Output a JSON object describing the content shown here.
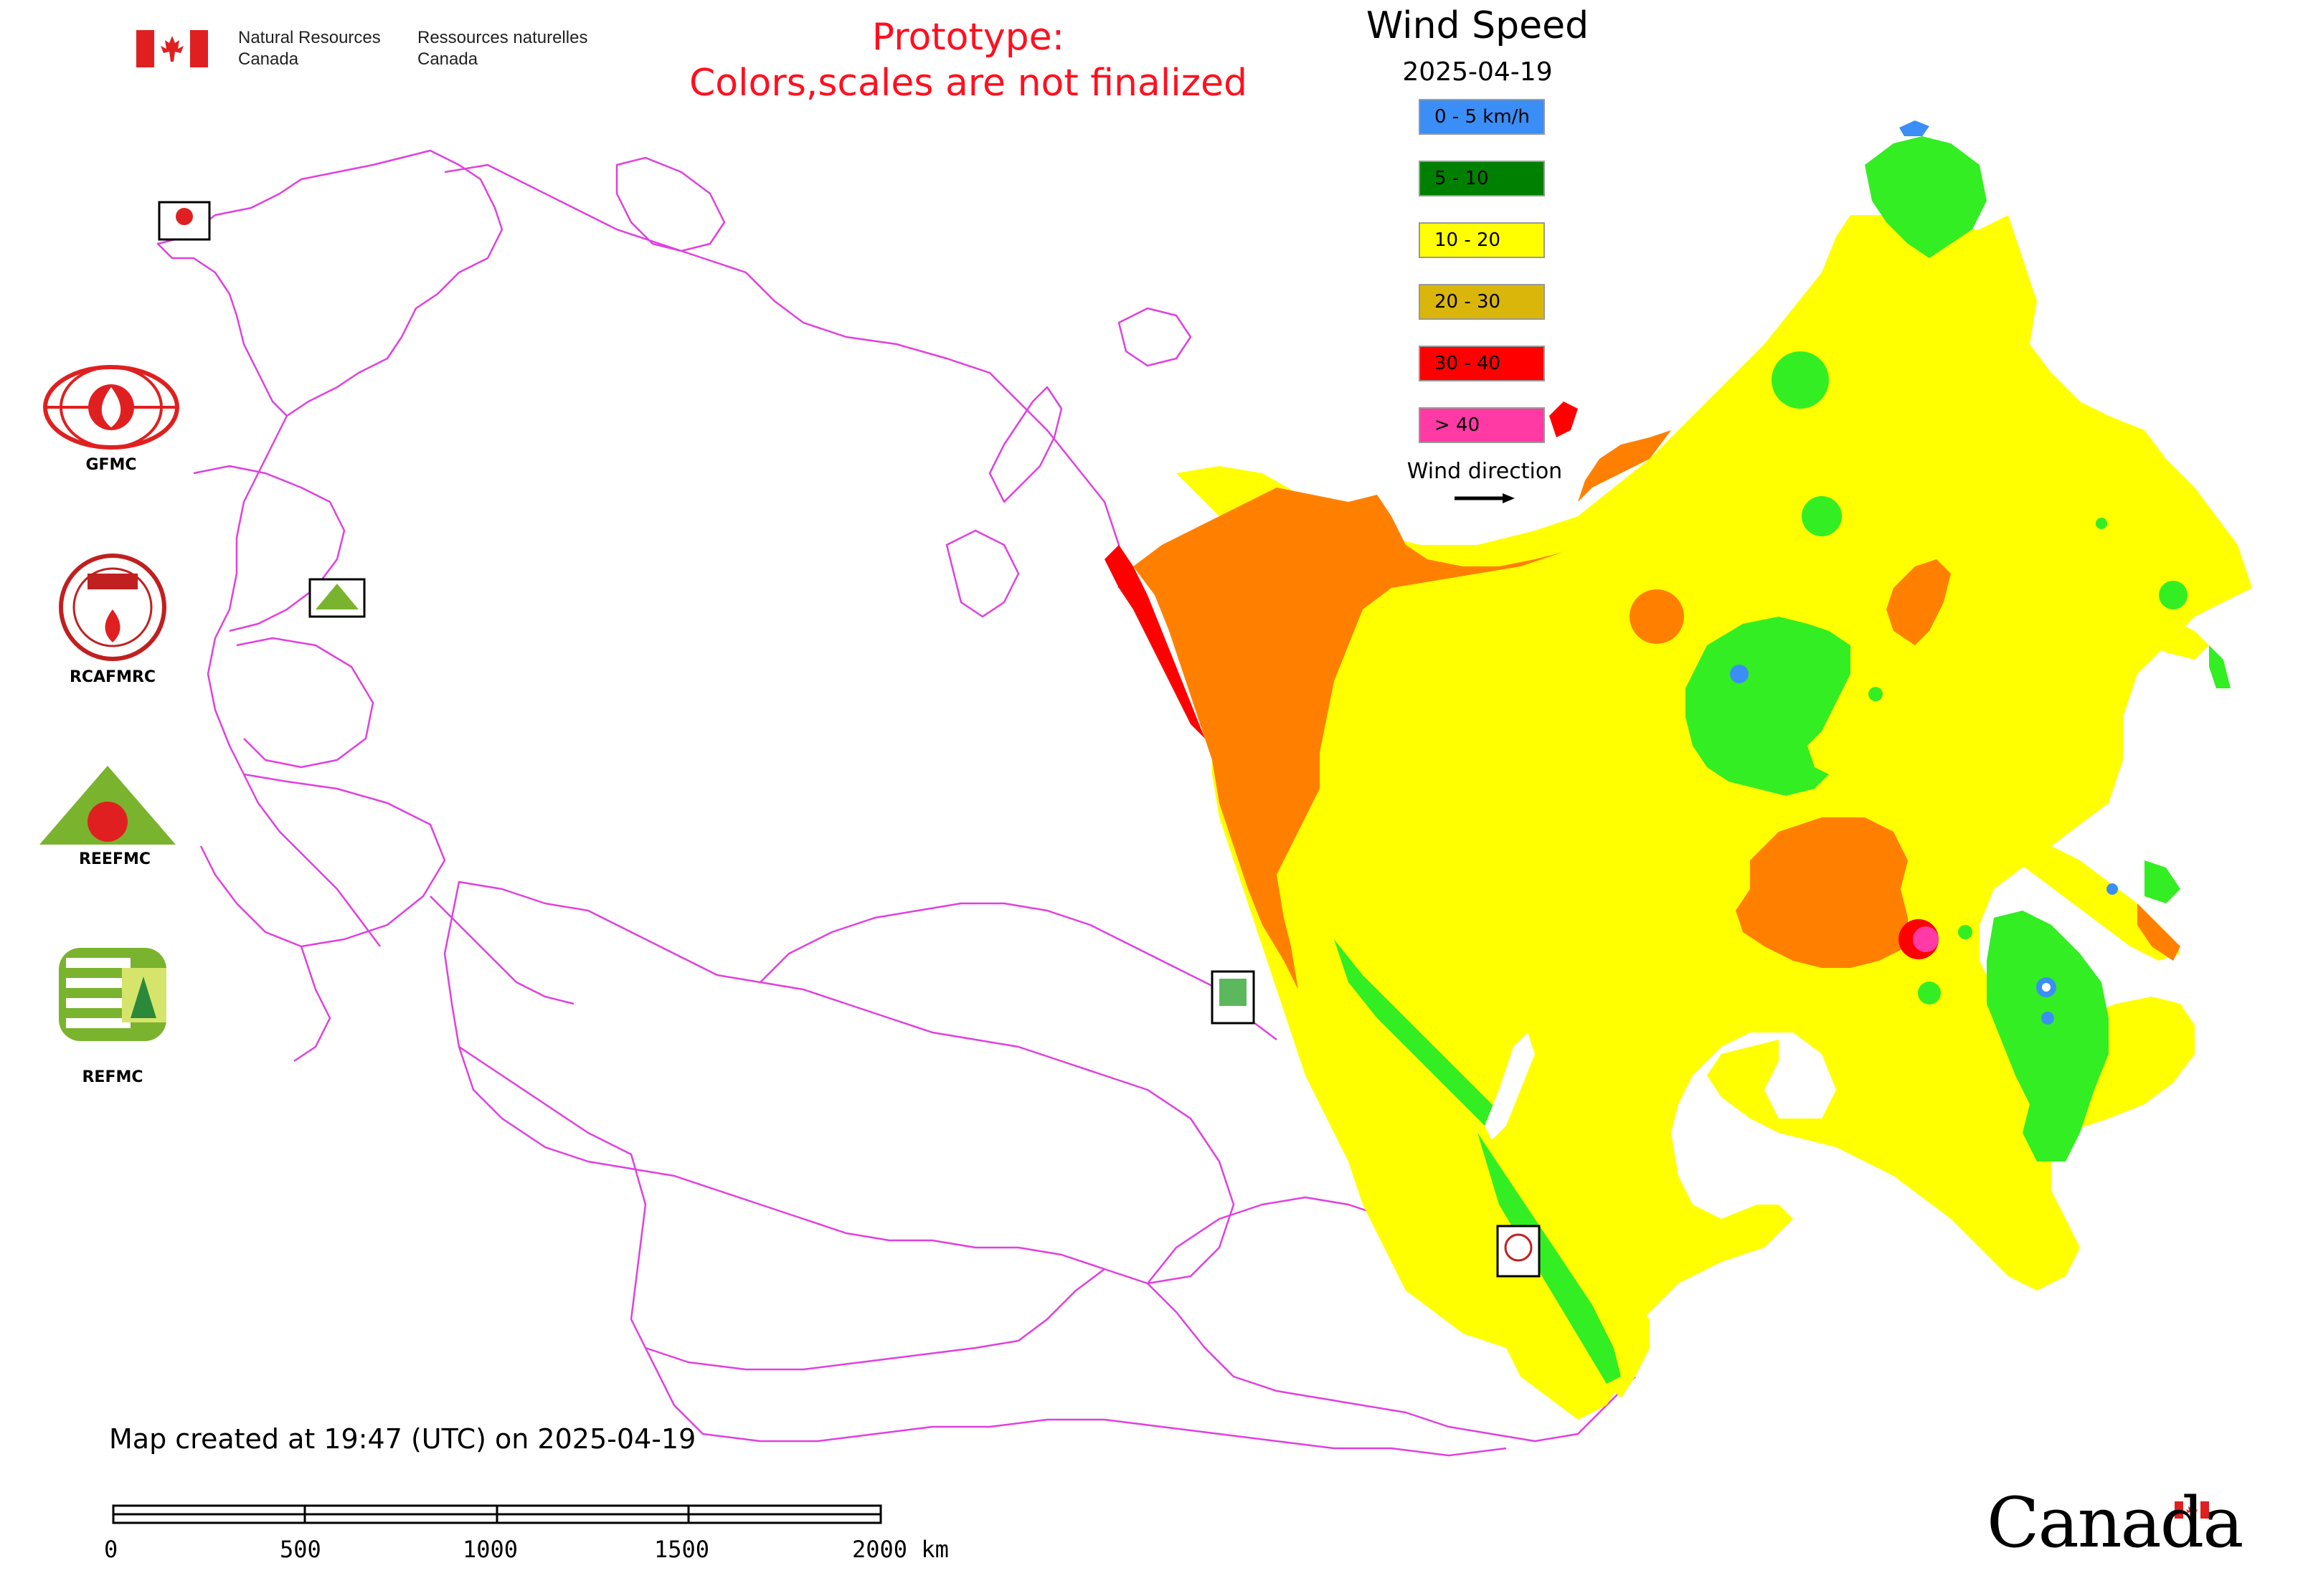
{
  "header": {
    "fip_en_line1": "Natural Resources",
    "fip_en_line2": "Canada",
    "fip_fr_line1": "Ressources naturelles",
    "fip_fr_line2": "Canada",
    "prototype_line1": "Prototype:",
    "prototype_line2": "Colors,scales are not finalized"
  },
  "legend": {
    "title": "Wind Speed",
    "date": "2025-04-19",
    "classes": [
      {
        "label": "0 - 5 km/h",
        "color": "#3a8ef5"
      },
      {
        "label": "5 - 10",
        "color": "#008000"
      },
      {
        "label": "10 - 20",
        "color": "#ffff00"
      },
      {
        "label": "20 - 30",
        "color": "#dab60a"
      },
      {
        "label": "30 - 40",
        "color": "#ff0000"
      },
      {
        "label": "> 40",
        "color": "#ff3aa5"
      }
    ],
    "wind_direction_label": "Wind direction"
  },
  "logos": [
    {
      "name": "GFMC",
      "label": "GFMC"
    },
    {
      "name": "RCAFMRC",
      "label": "RCAFMRC"
    },
    {
      "name": "REEFMC",
      "label": "REEFMC"
    },
    {
      "name": "REFMC",
      "label": "REFMC"
    }
  ],
  "footer": {
    "map_created": "Map created at 19:47 (UTC) on 2025-04-19",
    "scale_ticks": [
      "0",
      "500",
      "1000",
      "1500",
      "2000 km"
    ],
    "canada_wordmark": "Canada"
  },
  "colors": {
    "boundary": "#e040e0",
    "class_yellow": "#ffff00",
    "class_orange": "#ff8000",
    "class_green": "#33ee22",
    "class_red": "#ff0000",
    "class_blue": "#3a8ef5",
    "class_pink": "#ff3aa5"
  }
}
